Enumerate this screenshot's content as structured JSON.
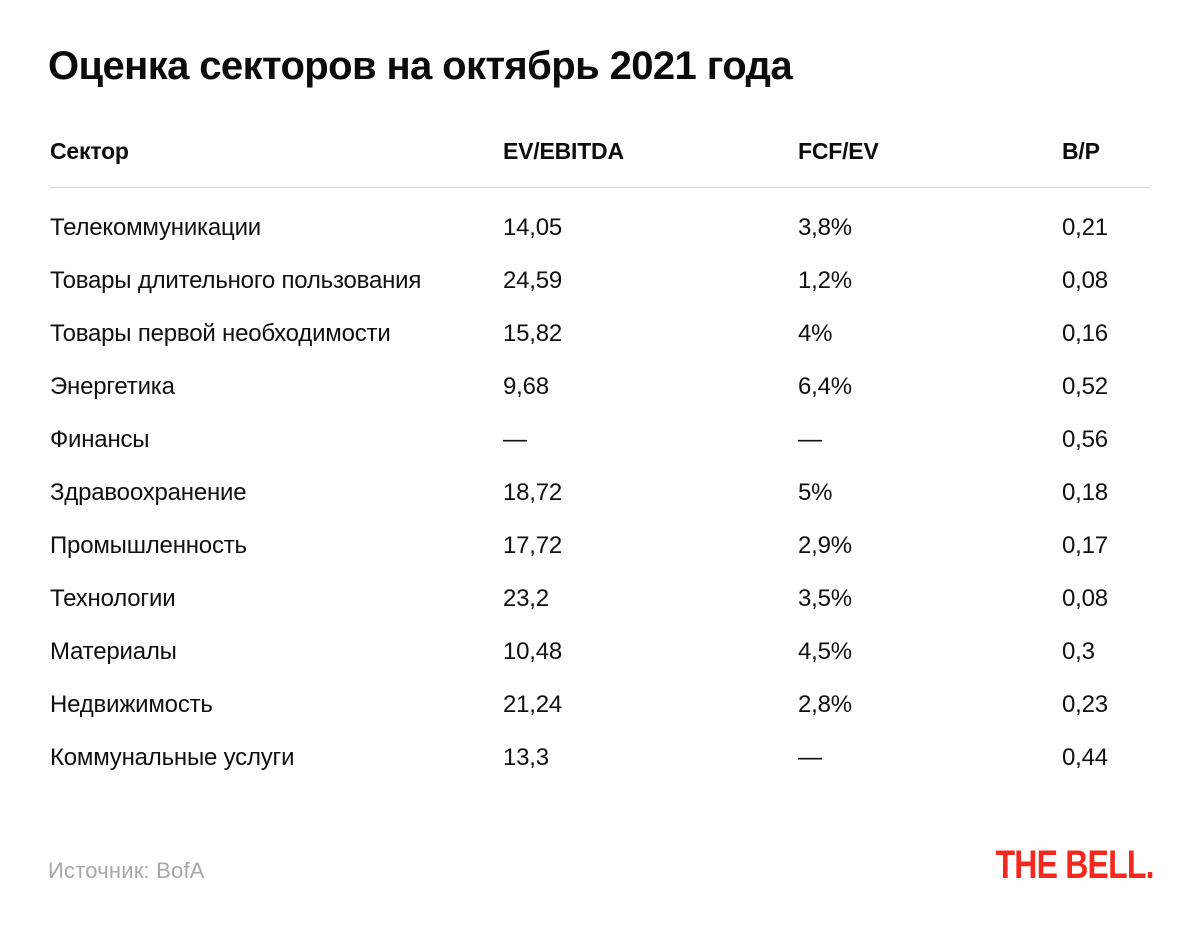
{
  "chart_data": {
    "type": "table",
    "title": "Оценка секторов на октябрь 2021 года",
    "columns": [
      "Сектор",
      "EV/EBITDA",
      "FCF/EV",
      "B/P"
    ],
    "rows": [
      [
        "Телекоммуникации",
        "14,05",
        "3,8%",
        "0,21"
      ],
      [
        "Товары длительного пользования",
        "24,59",
        "1,2%",
        "0,08"
      ],
      [
        "Товары первой необходимости",
        "15,82",
        "4%",
        "0,16"
      ],
      [
        "Энергетика",
        "9,68",
        "6,4%",
        "0,52"
      ],
      [
        "Финансы",
        "—",
        "—",
        "0,56"
      ],
      [
        "Здравоохранение",
        "18,72",
        "5%",
        "0,18"
      ],
      [
        "Промышленность",
        "17,72",
        "2,9%",
        "0,17"
      ],
      [
        "Технологии",
        "23,2",
        "3,5%",
        "0,08"
      ],
      [
        "Материалы",
        "10,48",
        "4,5%",
        "0,3"
      ],
      [
        "Недвижимость",
        "21,24",
        "2,8%",
        "0,23"
      ],
      [
        "Коммунальные услуги",
        "13,3",
        "—",
        "0,44"
      ]
    ]
  },
  "footer": {
    "source": "Источник: BofA",
    "logo": "THE BELL."
  },
  "colors": {
    "logo_red": "#f5281e",
    "divider_gray": "#d9d9d9",
    "source_gray": "#a8a8a8",
    "text_black": "#0d0d0d"
  }
}
